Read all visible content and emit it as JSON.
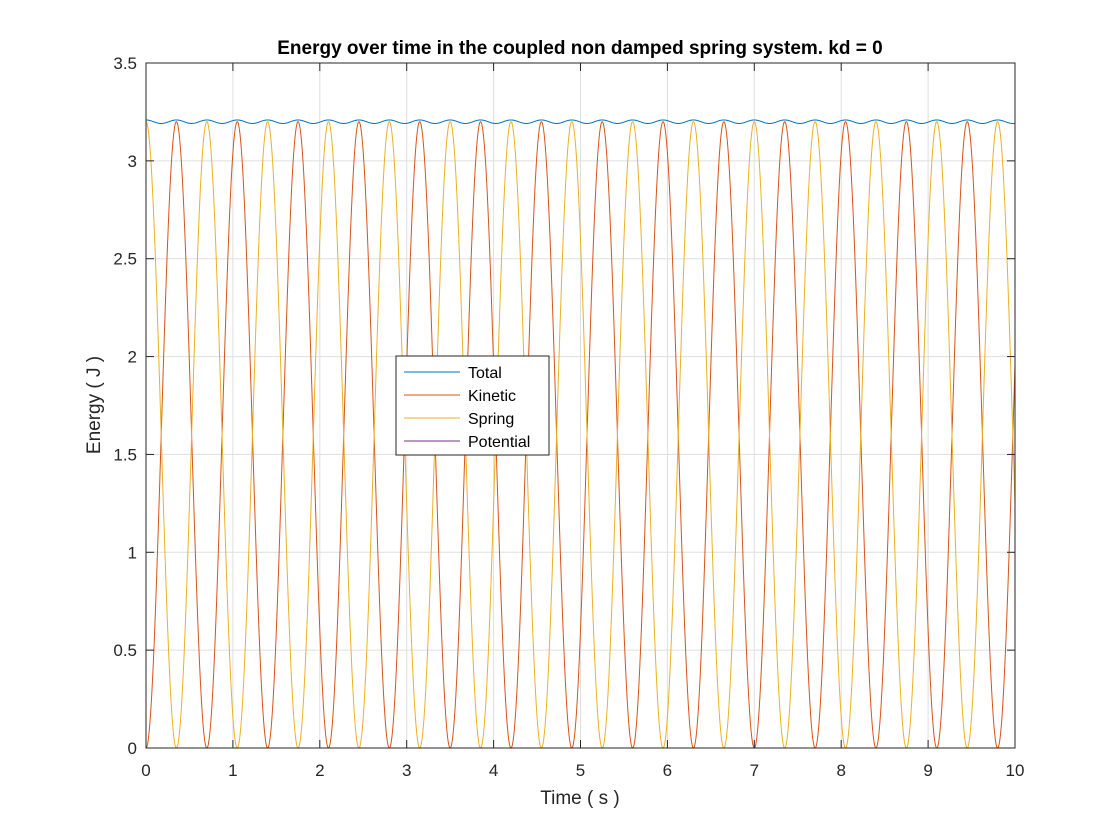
{
  "chart_data": {
    "type": "line",
    "title": "Energy over time in the coupled non damped spring system. kd = 0",
    "xlabel": "Time ( s )",
    "ylabel": "Energy ( J )",
    "xlim": [
      0,
      10
    ],
    "ylim": [
      0,
      3.5
    ],
    "xticks": [
      "0",
      "1",
      "2",
      "3",
      "4",
      "5",
      "6",
      "7",
      "8",
      "9",
      "10"
    ],
    "yticks": [
      "0",
      "0.5",
      "1",
      "1.5",
      "2",
      "2.5",
      "3",
      "3.5"
    ],
    "grid": true,
    "legend_position": "center-left",
    "model_note_period_s": 0.7,
    "series": [
      {
        "name": "Total",
        "color": "#0072BD",
        "description": "approximately constant at 3.2 J with small ripple (3.19–3.21)"
      },
      {
        "name": "Kinetic",
        "color": "#D95319",
        "description": "oscillates 0 to 3.2 J, starts at 0, peaks at ~0.35 s, zeros at ~0.7, 1.4, 2.1 ... s"
      },
      {
        "name": "Spring",
        "color": "#EDB120",
        "description": "oscillates 3.2 to 0 J, starts at 3.2, zeros at ~0.35, 1.05, 1.75 ... s"
      },
      {
        "name": "Potential",
        "color": "#7E2F8E",
        "description": "constant at 0 J"
      }
    ]
  }
}
